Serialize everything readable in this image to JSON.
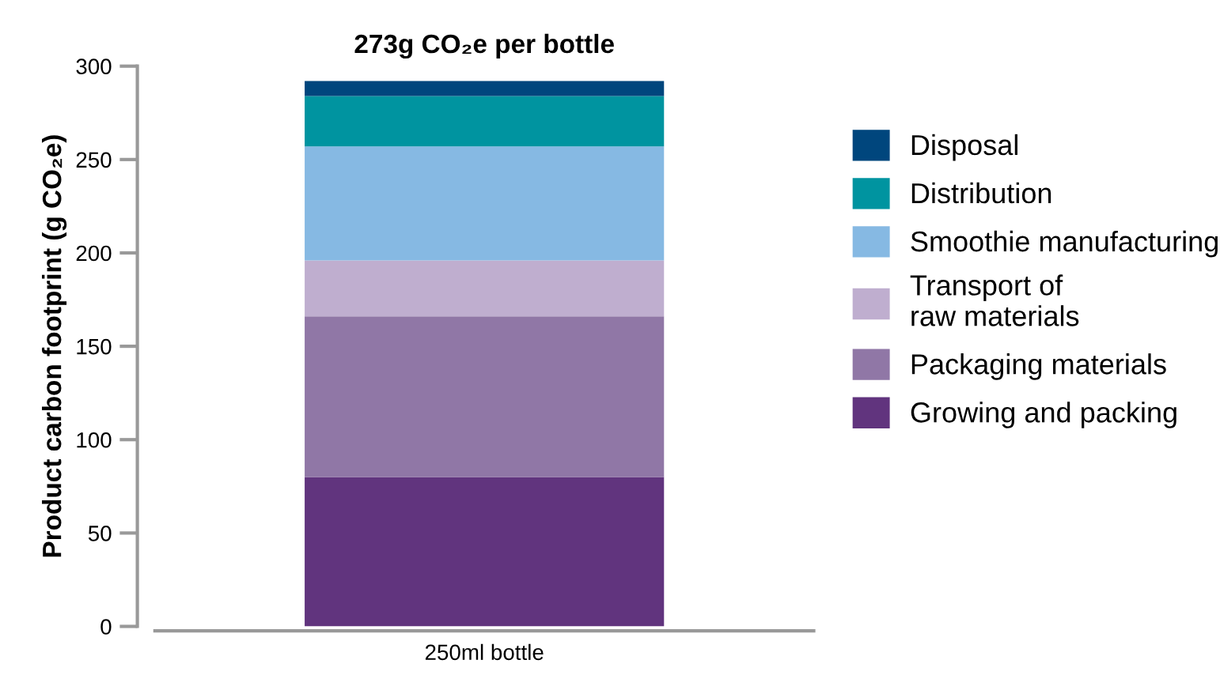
{
  "chart_data": {
    "type": "bar",
    "stacked": true,
    "title": "273g CO₂e per bottle",
    "ylabel": "Product carbon footprint (g CO₂e)",
    "categories": [
      "250ml bottle"
    ],
    "series": [
      {
        "name": "Growing and packing",
        "color": "#61347e",
        "values": [
          80
        ]
      },
      {
        "name": "Packaging materials",
        "color": "#9077a6",
        "values": [
          86
        ]
      },
      {
        "name": "Transport of\nraw materials",
        "color": "#bfaecf",
        "values": [
          30
        ]
      },
      {
        "name": "Smoothie manufacturing",
        "color": "#86b9e3",
        "values": [
          61
        ]
      },
      {
        "name": "Distribution",
        "color": "#0094a0",
        "values": [
          27
        ]
      },
      {
        "name": "Disposal",
        "color": "#00467d",
        "values": [
          8
        ]
      }
    ],
    "ylim": [
      0,
      300
    ],
    "yticks": [
      0,
      50,
      100,
      150,
      200,
      250,
      300
    ],
    "grid": false,
    "legend": "right"
  }
}
